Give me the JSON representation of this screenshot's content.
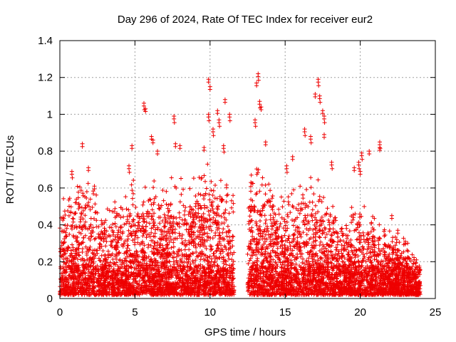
{
  "chart_data": {
    "type": "scatter",
    "title": "Day 296 of 2024, Rate Of TEC Index for receiver eur2",
    "xlabel": "GPS time / hours",
    "ylabel": "ROTI / TECUs",
    "xlim": [
      0,
      25
    ],
    "ylim": [
      0,
      1.4
    ],
    "xticks": [
      0,
      5,
      10,
      15,
      20,
      25
    ],
    "xtick_labels": [
      "0",
      "5",
      "10",
      "15",
      "20",
      "25"
    ],
    "yticks": [
      0,
      0.2,
      0.4,
      0.6,
      0.8,
      1,
      1.2,
      1.4
    ],
    "ytick_labels": [
      "0",
      "0.2",
      "0.4",
      "0.6",
      "0.8",
      "1",
      "1.2",
      "1.4"
    ],
    "grid": true,
    "legend": "none",
    "marker": "plus",
    "color": "#ee0000",
    "data_gap_hours": [
      11.6,
      12.5
    ],
    "envelope": {
      "x": [
        0,
        0.5,
        1,
        1.5,
        2,
        2.5,
        3,
        3.5,
        4,
        4.5,
        5,
        5.5,
        6,
        6.5,
        7,
        7.5,
        8,
        8.5,
        9,
        9.5,
        10,
        10.5,
        11,
        11.5,
        12.5,
        13,
        13.5,
        14,
        14.5,
        15,
        15.5,
        16,
        16.5,
        17,
        17.5,
        18,
        18.5,
        19,
        19.5,
        20,
        20.5,
        21,
        21.5,
        22,
        22.5,
        23,
        23.5,
        24
      ],
      "y": [
        0.45,
        0.55,
        0.6,
        0.65,
        0.62,
        0.5,
        0.45,
        0.48,
        0.5,
        0.55,
        0.6,
        0.58,
        0.62,
        0.55,
        0.58,
        0.62,
        0.6,
        0.55,
        0.6,
        0.65,
        0.7,
        0.68,
        0.6,
        0.55,
        0.65,
        0.75,
        0.65,
        0.55,
        0.5,
        0.5,
        0.55,
        0.6,
        0.62,
        0.65,
        0.55,
        0.45,
        0.42,
        0.4,
        0.45,
        0.5,
        0.45,
        0.4,
        0.35,
        0.35,
        0.32,
        0.3,
        0.25,
        0.15
      ]
    },
    "peaks": [
      {
        "x": 0.2,
        "y": 0.44
      },
      {
        "x": 0.8,
        "y": 0.69
      },
      {
        "x": 1.5,
        "y": 0.84
      },
      {
        "x": 1.9,
        "y": 0.71
      },
      {
        "x": 2.3,
        "y": 0.61
      },
      {
        "x": 4.6,
        "y": 0.72
      },
      {
        "x": 4.8,
        "y": 0.83
      },
      {
        "x": 5.6,
        "y": 1.06
      },
      {
        "x": 5.7,
        "y": 1.03
      },
      {
        "x": 6.1,
        "y": 0.88
      },
      {
        "x": 6.2,
        "y": 0.86
      },
      {
        "x": 6.5,
        "y": 0.8
      },
      {
        "x": 7.6,
        "y": 0.99
      },
      {
        "x": 7.7,
        "y": 0.84
      },
      {
        "x": 8.0,
        "y": 0.83
      },
      {
        "x": 9.6,
        "y": 0.82
      },
      {
        "x": 9.9,
        "y": 1.0
      },
      {
        "x": 9.9,
        "y": 1.19
      },
      {
        "x": 10.0,
        "y": 1.15
      },
      {
        "x": 10.2,
        "y": 0.92
      },
      {
        "x": 10.5,
        "y": 1.02
      },
      {
        "x": 10.6,
        "y": 0.97
      },
      {
        "x": 10.9,
        "y": 0.83
      },
      {
        "x": 11.0,
        "y": 1.08
      },
      {
        "x": 11.3,
        "y": 1.0
      },
      {
        "x": 13.0,
        "y": 0.97
      },
      {
        "x": 13.1,
        "y": 1.17
      },
      {
        "x": 13.2,
        "y": 1.22
      },
      {
        "x": 13.3,
        "y": 1.07
      },
      {
        "x": 13.4,
        "y": 1.04
      },
      {
        "x": 13.7,
        "y": 0.85
      },
      {
        "x": 15.1,
        "y": 0.72
      },
      {
        "x": 15.5,
        "y": 0.77
      },
      {
        "x": 16.3,
        "y": 0.92
      },
      {
        "x": 16.7,
        "y": 0.88
      },
      {
        "x": 17.0,
        "y": 1.11
      },
      {
        "x": 17.2,
        "y": 1.19
      },
      {
        "x": 17.3,
        "y": 1.1
      },
      {
        "x": 17.5,
        "y": 1.02
      },
      {
        "x": 17.6,
        "y": 0.99
      },
      {
        "x": 17.6,
        "y": 0.89
      },
      {
        "x": 18.1,
        "y": 0.74
      },
      {
        "x": 19.6,
        "y": 0.71
      },
      {
        "x": 19.9,
        "y": 0.74
      },
      {
        "x": 20.0,
        "y": 0.69
      },
      {
        "x": 20.1,
        "y": 0.79
      },
      {
        "x": 20.6,
        "y": 0.8
      },
      {
        "x": 21.3,
        "y": 0.82
      },
      {
        "x": 21.3,
        "y": 0.85
      },
      {
        "x": 22.1,
        "y": 0.45
      },
      {
        "x": 22.5,
        "y": 0.37
      },
      {
        "x": 23.0,
        "y": 0.31
      },
      {
        "x": 23.8,
        "y": 0.17
      }
    ]
  }
}
